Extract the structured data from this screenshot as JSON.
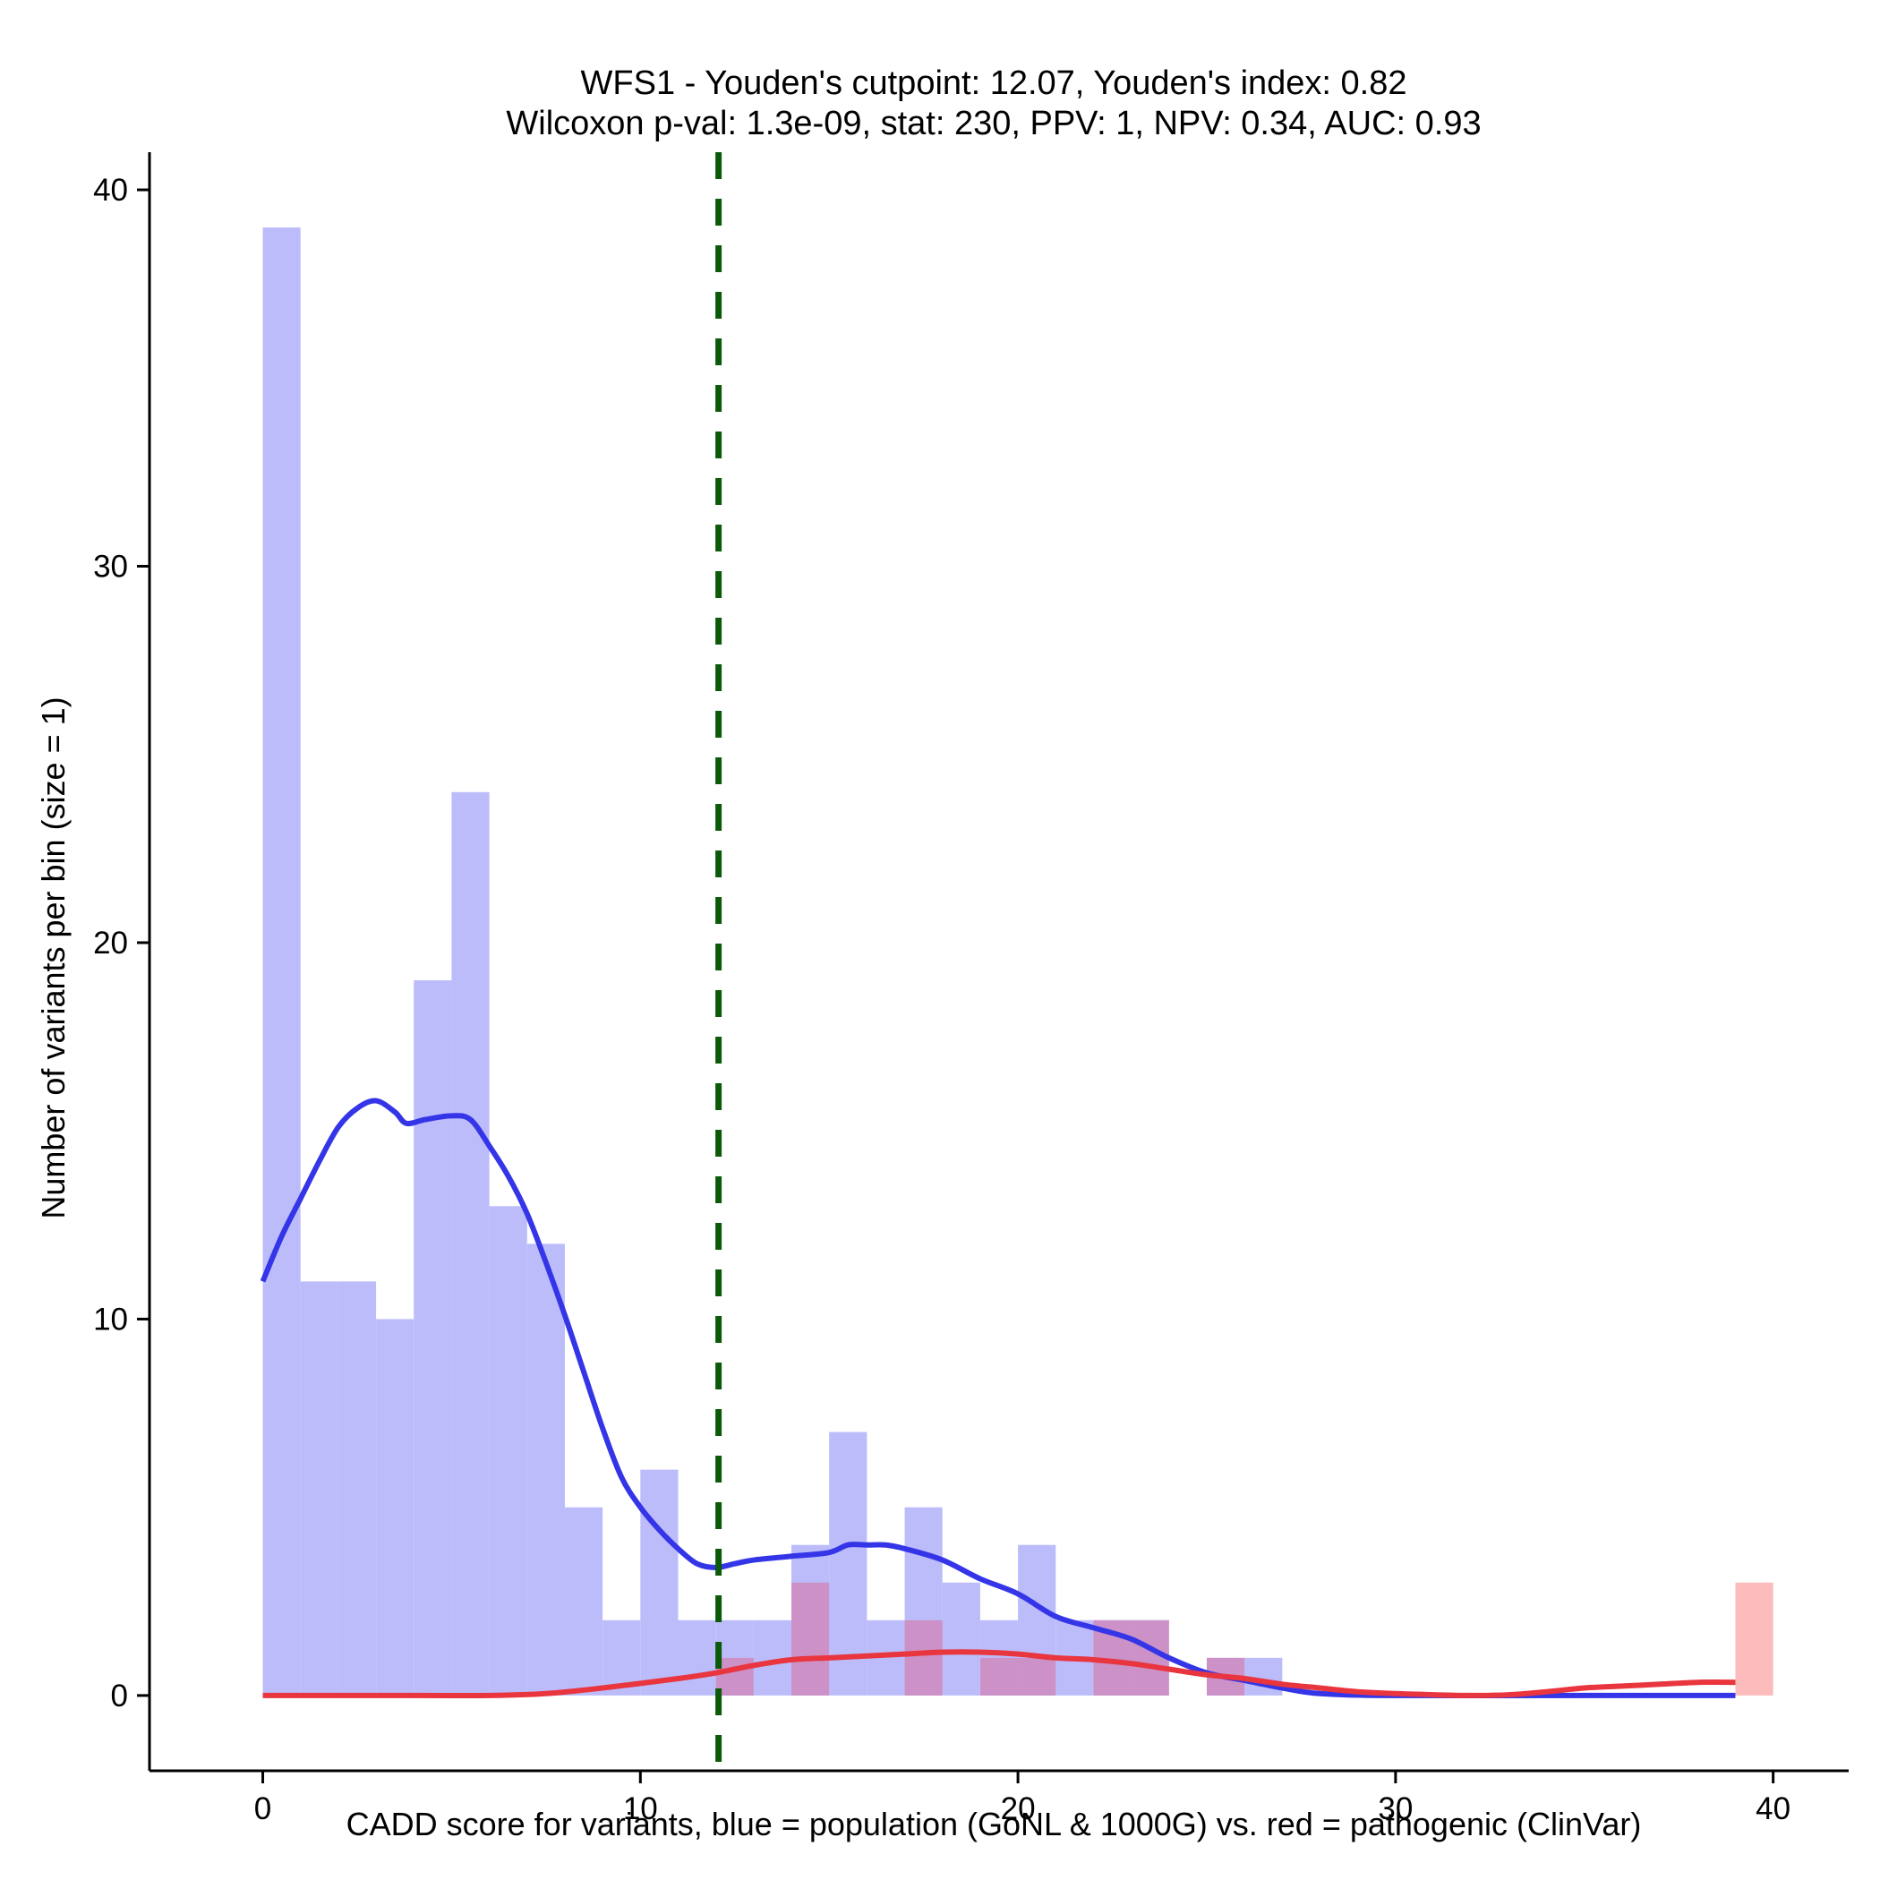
{
  "chart_data": {
    "type": "bar",
    "title_line1": "WFS1 - Youden's cutpoint: 12.07, Youden's index: 0.82",
    "title_line2": "Wilcoxon p-val: 1.3e-09, stat: 230, PPV: 1, NPV: 0.34, AUC: 0.93",
    "xlabel": "CADD score for variants, blue = population (GoNL & 1000G) vs. red = pathogenic (ClinVar)",
    "ylabel": "Number of variants per bin (size = 1)",
    "xlim": [
      -3,
      42
    ],
    "ylim": [
      -2,
      41
    ],
    "xticks": [
      0,
      10,
      20,
      30,
      40
    ],
    "yticks": [
      0,
      10,
      20,
      30,
      40
    ],
    "bin_width": 1,
    "cutpoint": 12.07,
    "colors": {
      "population_bar": "#bcbcfb",
      "pathogenic_bar": "#fcbcbc",
      "overlap_bar": "#cc91c7",
      "population_line": "#3535e8",
      "pathogenic_line": "#e8353e",
      "cutpoint_line": "#0a5a0a"
    },
    "series": [
      {
        "name": "population (GoNL & 1000G)",
        "bin_starts": [
          0,
          1,
          2,
          3,
          4,
          5,
          6,
          7,
          8,
          9,
          10,
          11,
          12,
          13,
          14,
          15,
          16,
          17,
          18,
          19,
          20,
          21,
          22,
          23,
          24,
          25,
          26
        ],
        "values": [
          39,
          11,
          11,
          10,
          19,
          24,
          13,
          12,
          5,
          2,
          6,
          2,
          2,
          2,
          4,
          7,
          2,
          5,
          3,
          2,
          4,
          2,
          2,
          2,
          0,
          1,
          1
        ]
      },
      {
        "name": "pathogenic (ClinVar)",
        "bin_starts": [
          12,
          14,
          17,
          19,
          20,
          22,
          23,
          25,
          39
        ],
        "values": [
          1,
          3,
          2,
          1,
          1,
          2,
          2,
          1,
          3
        ]
      }
    ],
    "density_population": [
      [
        0,
        11
      ],
      [
        0.5,
        12.2
      ],
      [
        1,
        13.2
      ],
      [
        1.5,
        14.2
      ],
      [
        2,
        15.1
      ],
      [
        2.5,
        15.6
      ],
      [
        3,
        15.8
      ],
      [
        3.5,
        15.5
      ],
      [
        3.8,
        15.2
      ],
      [
        4.3,
        15.3
      ],
      [
        5,
        15.4
      ],
      [
        5.5,
        15.3
      ],
      [
        6,
        14.6
      ],
      [
        6.5,
        13.8
      ],
      [
        7,
        12.8
      ],
      [
        7.5,
        11.5
      ],
      [
        8,
        10.1
      ],
      [
        8.5,
        8.6
      ],
      [
        9,
        7.1
      ],
      [
        9.5,
        5.8
      ],
      [
        10,
        5.0
      ],
      [
        10.5,
        4.4
      ],
      [
        11,
        3.9
      ],
      [
        11.5,
        3.5
      ],
      [
        12,
        3.4
      ],
      [
        12.5,
        3.5
      ],
      [
        13,
        3.6
      ],
      [
        14,
        3.7
      ],
      [
        15,
        3.8
      ],
      [
        15.5,
        4.0
      ],
      [
        16,
        4.0
      ],
      [
        16.5,
        4.0
      ],
      [
        17,
        3.9
      ],
      [
        18,
        3.6
      ],
      [
        19,
        3.1
      ],
      [
        20,
        2.7
      ],
      [
        21,
        2.1
      ],
      [
        22,
        1.8
      ],
      [
        23,
        1.5
      ],
      [
        24,
        1.0
      ],
      [
        25,
        0.6
      ],
      [
        26,
        0.4
      ],
      [
        27,
        0.2
      ],
      [
        28,
        0.05
      ],
      [
        30,
        0
      ],
      [
        35,
        0
      ],
      [
        39,
        0
      ]
    ],
    "density_pathogenic": [
      [
        0,
        0
      ],
      [
        4,
        0
      ],
      [
        6,
        0
      ],
      [
        7.5,
        0.05
      ],
      [
        9,
        0.2
      ],
      [
        11,
        0.45
      ],
      [
        12,
        0.6
      ],
      [
        13,
        0.8
      ],
      [
        14,
        0.95
      ],
      [
        15,
        1.0
      ],
      [
        16,
        1.05
      ],
      [
        17,
        1.1
      ],
      [
        18,
        1.15
      ],
      [
        19,
        1.15
      ],
      [
        20,
        1.1
      ],
      [
        21,
        1.0
      ],
      [
        22,
        0.95
      ],
      [
        23,
        0.85
      ],
      [
        24,
        0.7
      ],
      [
        25,
        0.55
      ],
      [
        26,
        0.45
      ],
      [
        27,
        0.3
      ],
      [
        28,
        0.2
      ],
      [
        29,
        0.1
      ],
      [
        30,
        0.05
      ],
      [
        31,
        0.02
      ],
      [
        32,
        0
      ],
      [
        33,
        0.02
      ],
      [
        34,
        0.1
      ],
      [
        35,
        0.2
      ],
      [
        36,
        0.25
      ],
      [
        37,
        0.3
      ],
      [
        38,
        0.35
      ],
      [
        39,
        0.35
      ]
    ]
  }
}
